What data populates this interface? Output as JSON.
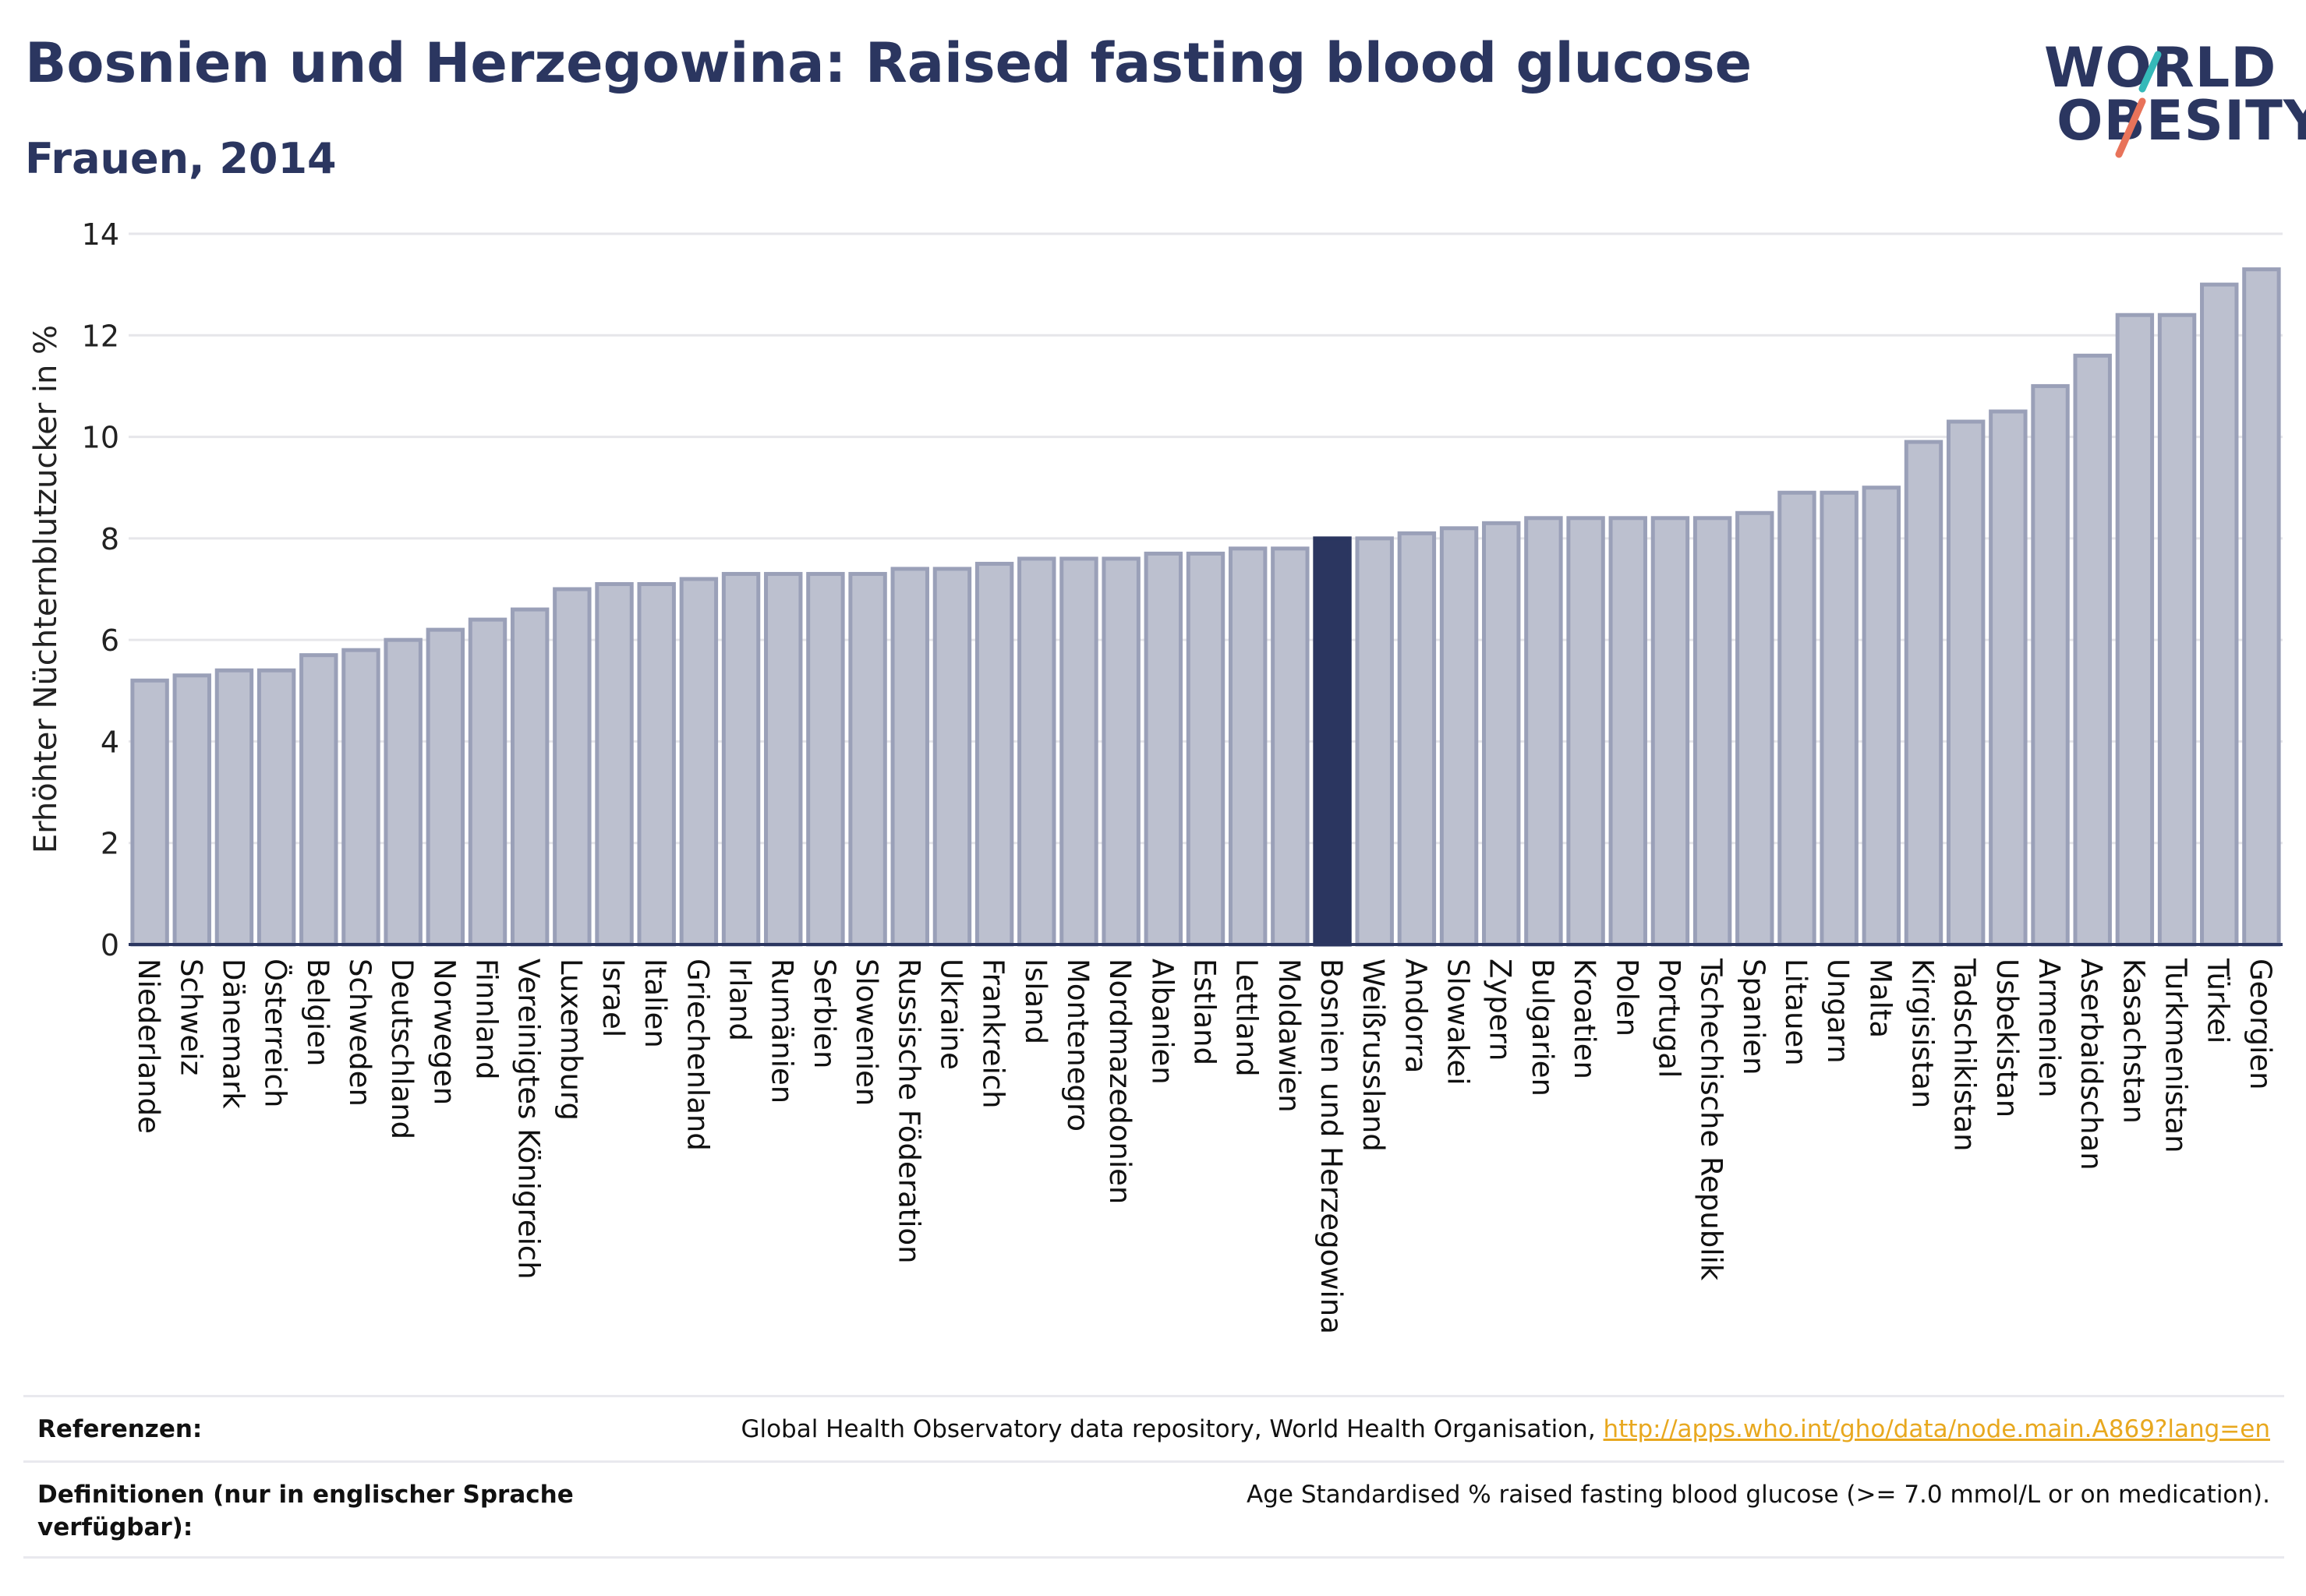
{
  "header": {
    "title": "Bosnien und Herzegowina: Raised fasting blood glucose",
    "subtitle": "Frauen, 2014"
  },
  "logo": {
    "line1": "WORLD",
    "line2": "OBESITY",
    "slash_colors": [
      "#35b9b9",
      "#e8735a"
    ]
  },
  "colors": {
    "bar": "#bcc0cf",
    "bar_stroke": "#9aa0b8",
    "highlight": "#2b3660",
    "axis": "#2b3660",
    "grid": "#e6e6ea"
  },
  "chart_data": {
    "type": "bar",
    "title": "Bosnien und Herzegowina: Raised fasting blood glucose",
    "subtitle": "Frauen, 2014",
    "xlabel": "",
    "ylabel": "Erhöhter Nüchternblutzucker in %",
    "ylim": [
      0,
      14
    ],
    "yticks": [
      0,
      2,
      4,
      6,
      8,
      10,
      12,
      14
    ],
    "grid": true,
    "highlight": "Bosnien und Herzegowina",
    "categories": [
      "Niederlande",
      "Schweiz",
      "Dänemark",
      "Österreich",
      "Belgien",
      "Schweden",
      "Deutschland",
      "Norwegen",
      "Finnland",
      "Vereinigtes Königreich",
      "Luxemburg",
      "Israel",
      "Italien",
      "Griechenland",
      "Irland",
      "Rumänien",
      "Serbien",
      "Slowenien",
      "Russische Föderation",
      "Ukraine",
      "Frankreich",
      "Island",
      "Montenegro",
      "Nordmazedonien",
      "Albanien",
      "Estland",
      "Lettland",
      "Moldawien",
      "Bosnien und Herzegowina",
      "Weißrussland",
      "Andorra",
      "Slowakei",
      "Zypern",
      "Bulgarien",
      "Kroatien",
      "Polen",
      "Portugal",
      "Tschechische Republik",
      "Spanien",
      "Litauen",
      "Ungarn",
      "Malta",
      "Kirgisistan",
      "Tadschikistan",
      "Usbekistan",
      "Armenien",
      "Aserbaidschan",
      "Kasachstan",
      "Turkmenistan",
      "Türkei",
      "Georgien"
    ],
    "values": [
      5.2,
      5.3,
      5.4,
      5.4,
      5.7,
      5.8,
      6.0,
      6.2,
      6.4,
      6.6,
      7.0,
      7.1,
      7.1,
      7.2,
      7.3,
      7.3,
      7.3,
      7.3,
      7.4,
      7.4,
      7.5,
      7.6,
      7.6,
      7.6,
      7.7,
      7.7,
      7.8,
      7.8,
      8.0,
      8.0,
      8.1,
      8.2,
      8.3,
      8.4,
      8.4,
      8.4,
      8.4,
      8.4,
      8.5,
      8.9,
      8.9,
      9.0,
      9.9,
      10.3,
      10.5,
      11.0,
      11.6,
      12.4,
      12.4,
      13.0,
      13.3
    ]
  },
  "references": {
    "ref_label": "Referenzen:",
    "ref_text": "Global Health Observatory data repository, World Health Organisation, ",
    "ref_link": "http://apps.who.int/gho/data/node.main.A869?lang=en",
    "def_label": "Definitionen (nur in englischer Sprache verfügbar):",
    "def_text": "Age Standardised % raised fasting blood glucose (>= 7.0 mmol/L or on medication)."
  }
}
